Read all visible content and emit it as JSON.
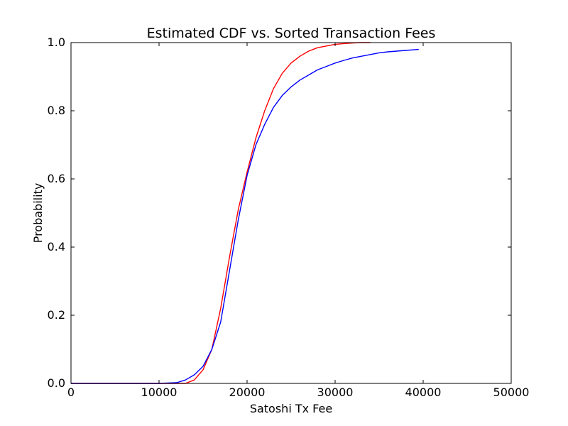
{
  "chart_data": {
    "type": "line",
    "title": "Estimated CDF vs. Sorted Transaction Fees",
    "xlabel": "Satoshi Tx Fee",
    "ylabel": "Probability",
    "xlim": [
      0,
      50000
    ],
    "ylim": [
      0.0,
      1.0
    ],
    "xticks": [
      0,
      10000,
      20000,
      30000,
      40000,
      50000
    ],
    "xtick_labels": [
      "0",
      "10000",
      "20000",
      "30000",
      "40000",
      "50000"
    ],
    "yticks": [
      0.0,
      0.2,
      0.4,
      0.6,
      0.8,
      1.0
    ],
    "ytick_labels": [
      "0.0",
      "0.2",
      "0.4",
      "0.6",
      "0.8",
      "1.0"
    ],
    "grid": false,
    "series": [
      {
        "color": "#ff0000",
        "x": [
          0,
          10000,
          13000,
          14000,
          15000,
          16000,
          17000,
          18000,
          19000,
          20000,
          21000,
          22000,
          23000,
          24000,
          25000,
          26000,
          27000,
          28000,
          29000,
          30000,
          31000,
          32000,
          33000,
          34000
        ],
        "y": [
          0.0,
          0.0,
          0.0,
          0.01,
          0.04,
          0.1,
          0.22,
          0.37,
          0.51,
          0.62,
          0.72,
          0.8,
          0.865,
          0.91,
          0.94,
          0.96,
          0.975,
          0.985,
          0.99,
          0.995,
          0.997,
          0.999,
          1.0,
          1.0
        ]
      },
      {
        "color": "#0000ff",
        "x": [
          0,
          10000,
          12000,
          13000,
          14000,
          15000,
          16000,
          17000,
          18000,
          19000,
          20000,
          21000,
          22000,
          23000,
          24000,
          25000,
          26000,
          27000,
          28000,
          29000,
          30000,
          31000,
          32000,
          33000,
          34000,
          35000,
          36000,
          37000,
          38000,
          39500
        ],
        "y": [
          0.0,
          0.0,
          0.002,
          0.01,
          0.025,
          0.05,
          0.1,
          0.18,
          0.33,
          0.48,
          0.61,
          0.7,
          0.76,
          0.81,
          0.845,
          0.87,
          0.89,
          0.905,
          0.92,
          0.93,
          0.94,
          0.948,
          0.955,
          0.96,
          0.965,
          0.97,
          0.973,
          0.975,
          0.977,
          0.98
        ]
      }
    ]
  }
}
